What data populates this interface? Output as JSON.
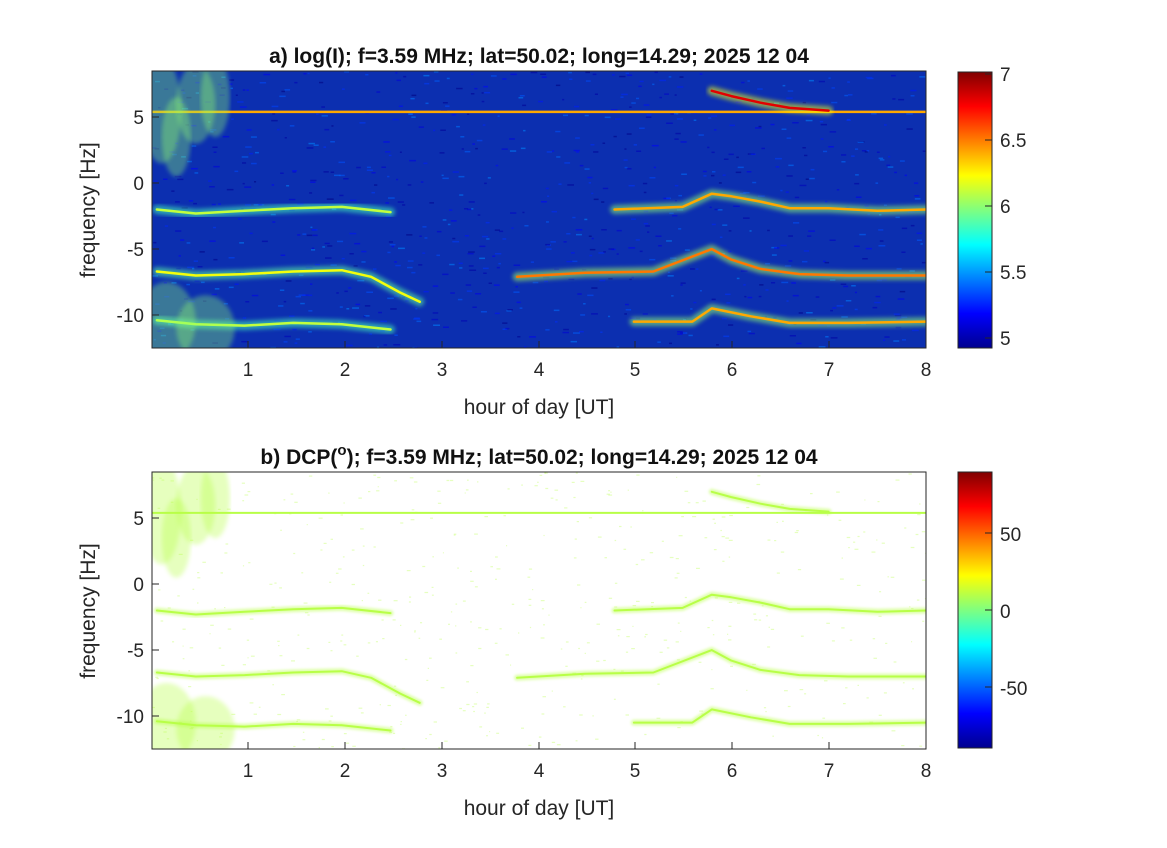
{
  "chart_data": [
    {
      "type": "heatmap",
      "title": "a) log(I); f=3.59 MHz;  lat=50.02; long=14.29; 2025 12 04",
      "xlabel": "hour of day [UT]",
      "ylabel": "frequency [Hz]",
      "xlim": [
        0.05,
        8.0
      ],
      "ylim": [
        -12,
        9
      ],
      "x_ticks": [
        1,
        2,
        3,
        4,
        5,
        6,
        7,
        8
      ],
      "y_ticks": [
        5,
        0,
        -5,
        -10
      ],
      "colorbar": {
        "range": [
          4.93,
          7.0
        ],
        "ticks": [
          7,
          6.5,
          6,
          5.5,
          5
        ],
        "colormap": "jet"
      },
      "background_value": 5.2,
      "traces": [
        {
          "points": [
            [
              0.05,
              5.9
            ],
            [
              8.0,
              5.9
            ]
          ],
          "value": 6.4
        },
        {
          "points": [
            [
              0.1,
              -1.5
            ],
            [
              0.5,
              -1.8
            ],
            [
              1.0,
              -1.6
            ],
            [
              1.5,
              -1.4
            ],
            [
              2.0,
              -1.3
            ],
            [
              2.5,
              -1.7
            ]
          ],
          "value": 6.1
        },
        {
          "points": [
            [
              0.1,
              -6.2
            ],
            [
              0.5,
              -6.5
            ],
            [
              1.0,
              -6.4
            ],
            [
              1.5,
              -6.2
            ],
            [
              2.0,
              -6.1
            ],
            [
              2.3,
              -6.6
            ],
            [
              2.6,
              -7.8
            ],
            [
              2.8,
              -8.5
            ]
          ],
          "value": 6.2
        },
        {
          "points": [
            [
              0.1,
              -9.9
            ],
            [
              0.5,
              -10.2
            ],
            [
              1.0,
              -10.3
            ],
            [
              1.5,
              -10.1
            ],
            [
              2.0,
              -10.2
            ],
            [
              2.5,
              -10.6
            ]
          ],
          "value": 6.1
        },
        {
          "points": [
            [
              4.8,
              -1.5
            ],
            [
              5.5,
              -1.3
            ],
            [
              5.8,
              -0.3
            ],
            [
              6.0,
              -0.5
            ],
            [
              6.3,
              -0.9
            ],
            [
              6.6,
              -1.4
            ],
            [
              7.0,
              -1.4
            ],
            [
              7.5,
              -1.6
            ],
            [
              8.0,
              -1.5
            ]
          ],
          "value": 6.4
        },
        {
          "points": [
            [
              3.8,
              -6.6
            ],
            [
              4.5,
              -6.3
            ],
            [
              5.2,
              -6.2
            ],
            [
              5.8,
              -4.5
            ],
            [
              6.0,
              -5.3
            ],
            [
              6.3,
              -6.0
            ],
            [
              6.7,
              -6.4
            ],
            [
              7.2,
              -6.5
            ],
            [
              8.0,
              -6.5
            ]
          ],
          "value": 6.5
        },
        {
          "points": [
            [
              5.0,
              -10.0
            ],
            [
              5.6,
              -10.0
            ],
            [
              5.8,
              -9.0
            ],
            [
              6.2,
              -9.6
            ],
            [
              6.6,
              -10.1
            ],
            [
              7.2,
              -10.1
            ],
            [
              8.0,
              -10.0
            ]
          ],
          "value": 6.4
        },
        {
          "points": [
            [
              5.8,
              7.5
            ],
            [
              6.0,
              7.1
            ],
            [
              6.3,
              6.6
            ],
            [
              6.6,
              6.2
            ],
            [
              7.0,
              6.0
            ]
          ],
          "value": 6.8
        }
      ]
    },
    {
      "type": "heatmap",
      "title": "b) DCP(o); f=3.59 MHz;  lat=50.02; long=14.29; 2025 12 04",
      "title_parts": {
        "pre": "b) DCP(",
        "sup": "o",
        "post": "); f=3.59 MHz;  lat=50.02; long=14.29; 2025 12 04"
      },
      "xlabel": "hour of day [UT]",
      "ylabel": "frequency [Hz]",
      "xlim": [
        0.05,
        8.0
      ],
      "ylim": [
        -12,
        9
      ],
      "x_ticks": [
        1,
        2,
        3,
        4,
        5,
        6,
        7,
        8
      ],
      "y_ticks": [
        5,
        0,
        -5,
        -10
      ],
      "colorbar": {
        "range": [
          -90,
          90
        ],
        "ticks": [
          50,
          0,
          -50
        ],
        "colormap": "jet"
      },
      "background": "white",
      "trace_value": 10,
      "traces_from_panel": 0
    }
  ]
}
